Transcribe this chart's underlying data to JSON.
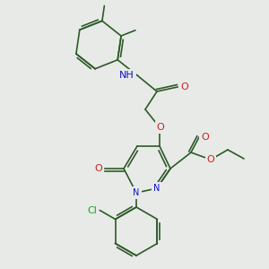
{
  "bg_color": "#e8eae8",
  "bond_color": "#2d5a27",
  "atom_colors": {
    "N": "#1010cc",
    "O": "#cc2020",
    "Cl": "#10aa10"
  },
  "bond_width": 1.2,
  "figsize": [
    3.0,
    3.0
  ],
  "dpi": 100,
  "xlim": [
    0,
    300
  ],
  "ylim": [
    0,
    300
  ]
}
